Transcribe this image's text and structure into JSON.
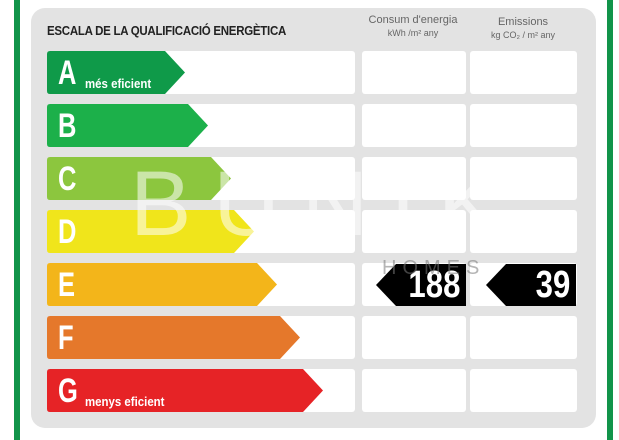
{
  "title": "ESCALA DE LA QUALIFICACIÓ ENERGÈTICA",
  "columns": {
    "consum": {
      "label": "Consum d'energia",
      "unit": "kWh /m² any"
    },
    "emissions": {
      "label": "Emissions",
      "unit": "kg CO₂ / m² any"
    }
  },
  "ratings": [
    {
      "letter": "A",
      "note": "més eficient",
      "color": "#0f9a49"
    },
    {
      "letter": "B",
      "note": "",
      "color": "#1cb04a"
    },
    {
      "letter": "C",
      "note": "",
      "color": "#8cc63e"
    },
    {
      "letter": "D",
      "note": "",
      "color": "#f0e51b"
    },
    {
      "letter": "E",
      "note": "",
      "color": "#f3b51a"
    },
    {
      "letter": "F",
      "note": "",
      "color": "#e5782b"
    },
    {
      "letter": "G",
      "note": "menys eficient",
      "color": "#e62326"
    }
  ],
  "current": {
    "rating": "E",
    "consum": "188",
    "emissions": "39"
  },
  "watermark": {
    "brand": "BÜNIK",
    "sub": "HOMES"
  },
  "colors": {
    "frame_green": "#12944a",
    "panel": "#e3e3e3",
    "indicator": "#000000"
  }
}
